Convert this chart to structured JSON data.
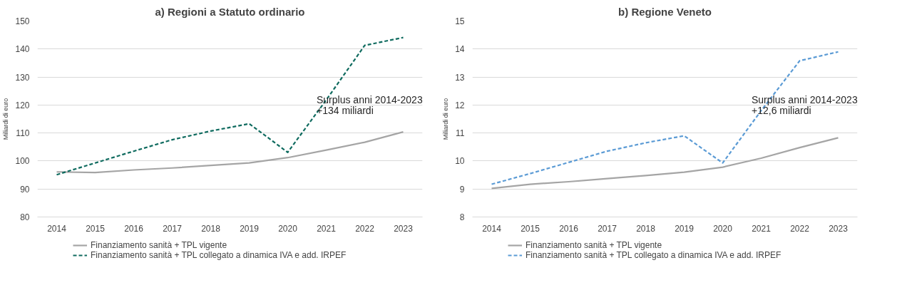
{
  "chart_data": [
    {
      "type": "line",
      "title": "a) Regioni a Statuto ordinario",
      "ylabel": "Miliardi di euro",
      "categories": [
        "2014",
        "2015",
        "2016",
        "2017",
        "2018",
        "2019",
        "2020",
        "2021",
        "2022",
        "2023"
      ],
      "series": [
        {
          "name": "Finanziamento sanità + TPL vigente",
          "color": "#a5a5a5",
          "line_style": "solid",
          "values": [
            96.1,
            95.9,
            96.8,
            97.5,
            98.4,
            99.3,
            101.2,
            103.9,
            106.7,
            110.4
          ]
        },
        {
          "name": "Finanziamento sanità + TPL collegato a dinamica IVA e add. IRPEF",
          "color": "#0f6b5f",
          "line_style": "dashed",
          "values": [
            95.1,
            99.3,
            103.5,
            107.6,
            110.7,
            113.3,
            103.1,
            121.8,
            141.3,
            144.1
          ]
        }
      ],
      "ylim": [
        80,
        150
      ],
      "yticks": [
        80,
        90,
        100,
        110,
        120,
        130,
        140,
        150
      ],
      "grid": "y",
      "legend": "bottom",
      "annotations": [
        "Surplus anni 2014-2023",
        "+134 miliardi"
      ]
    },
    {
      "type": "line",
      "title": "b) Regione Veneto",
      "ylabel": "Miliardi di euro",
      "categories": [
        "2014",
        "2015",
        "2016",
        "2017",
        "2018",
        "2019",
        "2020",
        "2021",
        "2022",
        "2023"
      ],
      "series": [
        {
          "name": "Finanziamento sanità + TPL vigente",
          "color": "#a5a5a5",
          "line_style": "solid",
          "values": [
            9.02,
            9.17,
            9.26,
            9.37,
            9.48,
            9.6,
            9.78,
            10.1,
            10.48,
            10.83
          ]
        },
        {
          "name": "Finanziamento sanità + TPL collegato a dinamica IVA e add. IRPEF",
          "color": "#5b9bd5",
          "line_style": "dashed",
          "values": [
            9.17,
            9.55,
            9.95,
            10.35,
            10.65,
            10.9,
            9.93,
            11.8,
            13.58,
            13.9
          ]
        }
      ],
      "ylim": [
        8,
        15
      ],
      "yticks": [
        8,
        9,
        10,
        11,
        12,
        13,
        14,
        15
      ],
      "grid": "y",
      "legend": "bottom",
      "annotations": [
        "Surplus anni 2014-2023",
        "+12,6 miliardi"
      ]
    }
  ]
}
